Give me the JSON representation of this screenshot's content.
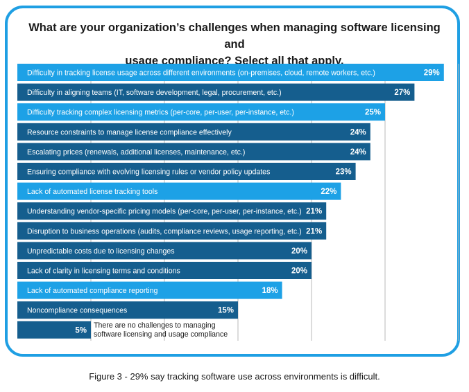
{
  "title_lines": [
    "What are your organization’s challenges when managing software licensing and",
    "usage compliance?  Select all that apply."
  ],
  "caption": "Figure 3 - 29% say tracking software use across environments is difficult.",
  "colors": {
    "frame": "#1f9fe3",
    "bar_light": "#1da1e6",
    "bar_dark": "#155e8e",
    "gridline": "#b8b8b8",
    "label_text": "#ffffff",
    "outside_text": "#1a1a1a"
  },
  "chart_data": {
    "type": "bar",
    "orientation": "horizontal",
    "xlim": [
      0,
      30
    ],
    "grid": true,
    "categories": [
      "Difficulty in tracking license usage across different environments (on-premises, cloud, remote workers, etc.)",
      "Difficulty in aligning teams (IT, software development, legal, procurement, etc.)",
      "Difficulty tracking complex licensing metrics (per-core, per-user, per-instance, etc.)",
      "Resource constraints to manage license compliance effectively",
      "Escalating prices (renewals, additional licenses, maintenance, etc.)",
      "Ensuring compliance with evolving licensing rules or vendor policy updates",
      "Lack of automated license tracking tools",
      "Understanding vendor-specific pricing models (per-core, per-user, per-instance, etc.)",
      "Disruption to business operations (audits, compliance reviews, usage reporting, etc.)",
      "Unpredictable costs due to licensing changes",
      "Lack of clarity in licensing terms and conditions",
      "Lack of automated compliance reporting",
      "Noncompliance consequences",
      "There are no challenges to managing software licensing and usage compliance"
    ],
    "values": [
      29,
      27,
      25,
      24,
      24,
      23,
      22,
      21,
      21,
      20,
      20,
      18,
      15,
      5
    ],
    "value_labels": [
      "29%",
      "27%",
      "25%",
      "24%",
      "24%",
      "23%",
      "22%",
      "21%",
      "21%",
      "20%",
      "20%",
      "18%",
      "15%",
      "5%"
    ],
    "bar_colors": [
      "light",
      "dark",
      "light",
      "dark",
      "dark",
      "dark",
      "light",
      "dark",
      "dark",
      "dark",
      "dark",
      "light",
      "dark",
      "dark"
    ],
    "outside_label_lines": [
      "There are no challenges to managing",
      "software licensing and usage compliance"
    ]
  }
}
